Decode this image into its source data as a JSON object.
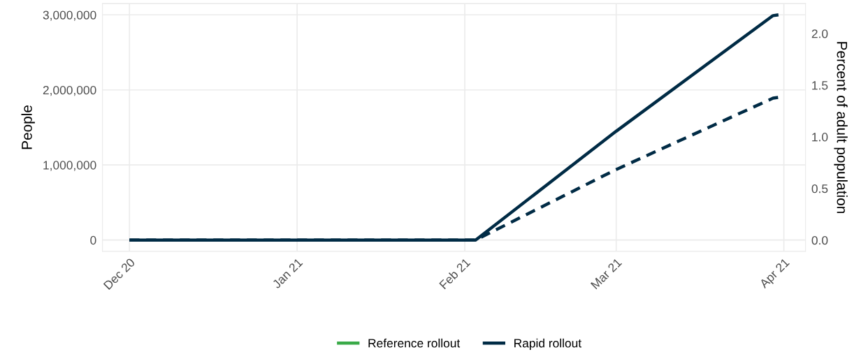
{
  "chart_data": {
    "type": "line",
    "ylabel": "People",
    "y2label": "Percent of adult population",
    "xlim": [
      "2020-11-26",
      "2021-04-05"
    ],
    "xticks": [
      {
        "value": "2020-12-01",
        "label": "Dec 20"
      },
      {
        "value": "2021-01-01",
        "label": "Jan 21"
      },
      {
        "value": "2021-02-01",
        "label": "Feb 21"
      },
      {
        "value": "2021-03-01",
        "label": "Mar 21"
      },
      {
        "value": "2021-04-01",
        "label": "Apr 21"
      }
    ],
    "ylim": [
      -150000,
      3150000
    ],
    "yticks": [
      {
        "value": 0,
        "label": "0"
      },
      {
        "value": 1000000,
        "label": "1,000,000"
      },
      {
        "value": 2000000,
        "label": "2,000,000"
      },
      {
        "value": 3000000,
        "label": "3,000,000"
      }
    ],
    "y2lim": [
      -0.108,
      2.29
    ],
    "y2ticks": [
      {
        "value": 0,
        "label": "0.0"
      },
      {
        "value": 0.5,
        "label": "0.5"
      },
      {
        "value": 1,
        "label": "1.0"
      },
      {
        "value": 1.5,
        "label": "1.5"
      },
      {
        "value": 2,
        "label": "2.0"
      }
    ],
    "grid": true,
    "legend": "bottom",
    "series": [
      {
        "name": "Reference rollout",
        "color": "#3aaa48"
      },
      {
        "name": "Rapid rollout",
        "color": "#002b45",
        "line_style": "solid",
        "x": [
          "2020-12-01",
          "2021-02-03",
          "2021-03-01",
          "2021-03-30",
          "2021-03-31"
        ],
        "values": [
          0,
          0,
          1450000,
          2990000,
          3000000
        ]
      },
      {
        "color": "#002b45",
        "line_style": "dashed",
        "x": [
          "2020-12-01",
          "2021-02-03",
          "2021-03-01",
          "2021-03-30",
          "2021-03-31"
        ],
        "values": [
          0,
          0,
          940000,
          1890000,
          1900000
        ]
      }
    ]
  }
}
